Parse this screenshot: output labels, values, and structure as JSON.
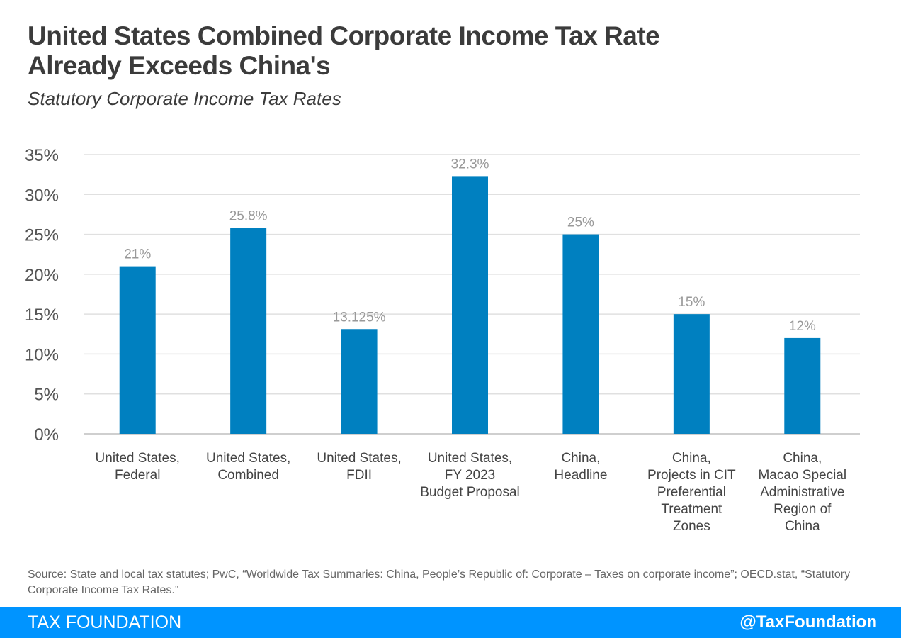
{
  "title_line1": "United States Combined Corporate Income Tax Rate",
  "title_line2": "Already Exceeds China's",
  "subtitle": "Statutory Corporate Income Tax Rates",
  "chart_data": {
    "type": "bar",
    "categories": [
      [
        "United States,",
        "Federal"
      ],
      [
        "United States,",
        "Combined"
      ],
      [
        "United States,",
        "FDII"
      ],
      [
        "United States,",
        "FY 2023",
        "Budget Proposal"
      ],
      [
        "China,",
        "Headline"
      ],
      [
        "China,",
        "Projects in CIT",
        "Preferential",
        "Treatment",
        "Zones"
      ],
      [
        "China,",
        "Macao Special",
        "Administrative",
        "Region of",
        "China"
      ]
    ],
    "values": [
      21,
      25.8,
      13.125,
      32.3,
      25,
      15,
      12
    ],
    "data_labels": [
      "21%",
      "25.8%",
      "13.125%",
      "32.3%",
      "25%",
      "15%",
      "12%"
    ],
    "ylim": [
      0,
      35
    ],
    "yticks": [
      0,
      5,
      10,
      15,
      20,
      25,
      30,
      35
    ],
    "ytick_labels": [
      "0%",
      "5%",
      "10%",
      "15%",
      "20%",
      "25%",
      "30%",
      "35%"
    ],
    "grid": true,
    "bar_color": "#0080c0"
  },
  "source": "Source: State and local tax statutes; PwC, “Worldwide Tax Summaries: China, People’s Republic of: Corporate – Taxes on corporate income”; OECD.stat, “Statutory Corporate Income Tax Rates.”",
  "footer": {
    "brand": "TAX FOUNDATION",
    "handle": "@TaxFoundation",
    "color": "#0094ff"
  }
}
